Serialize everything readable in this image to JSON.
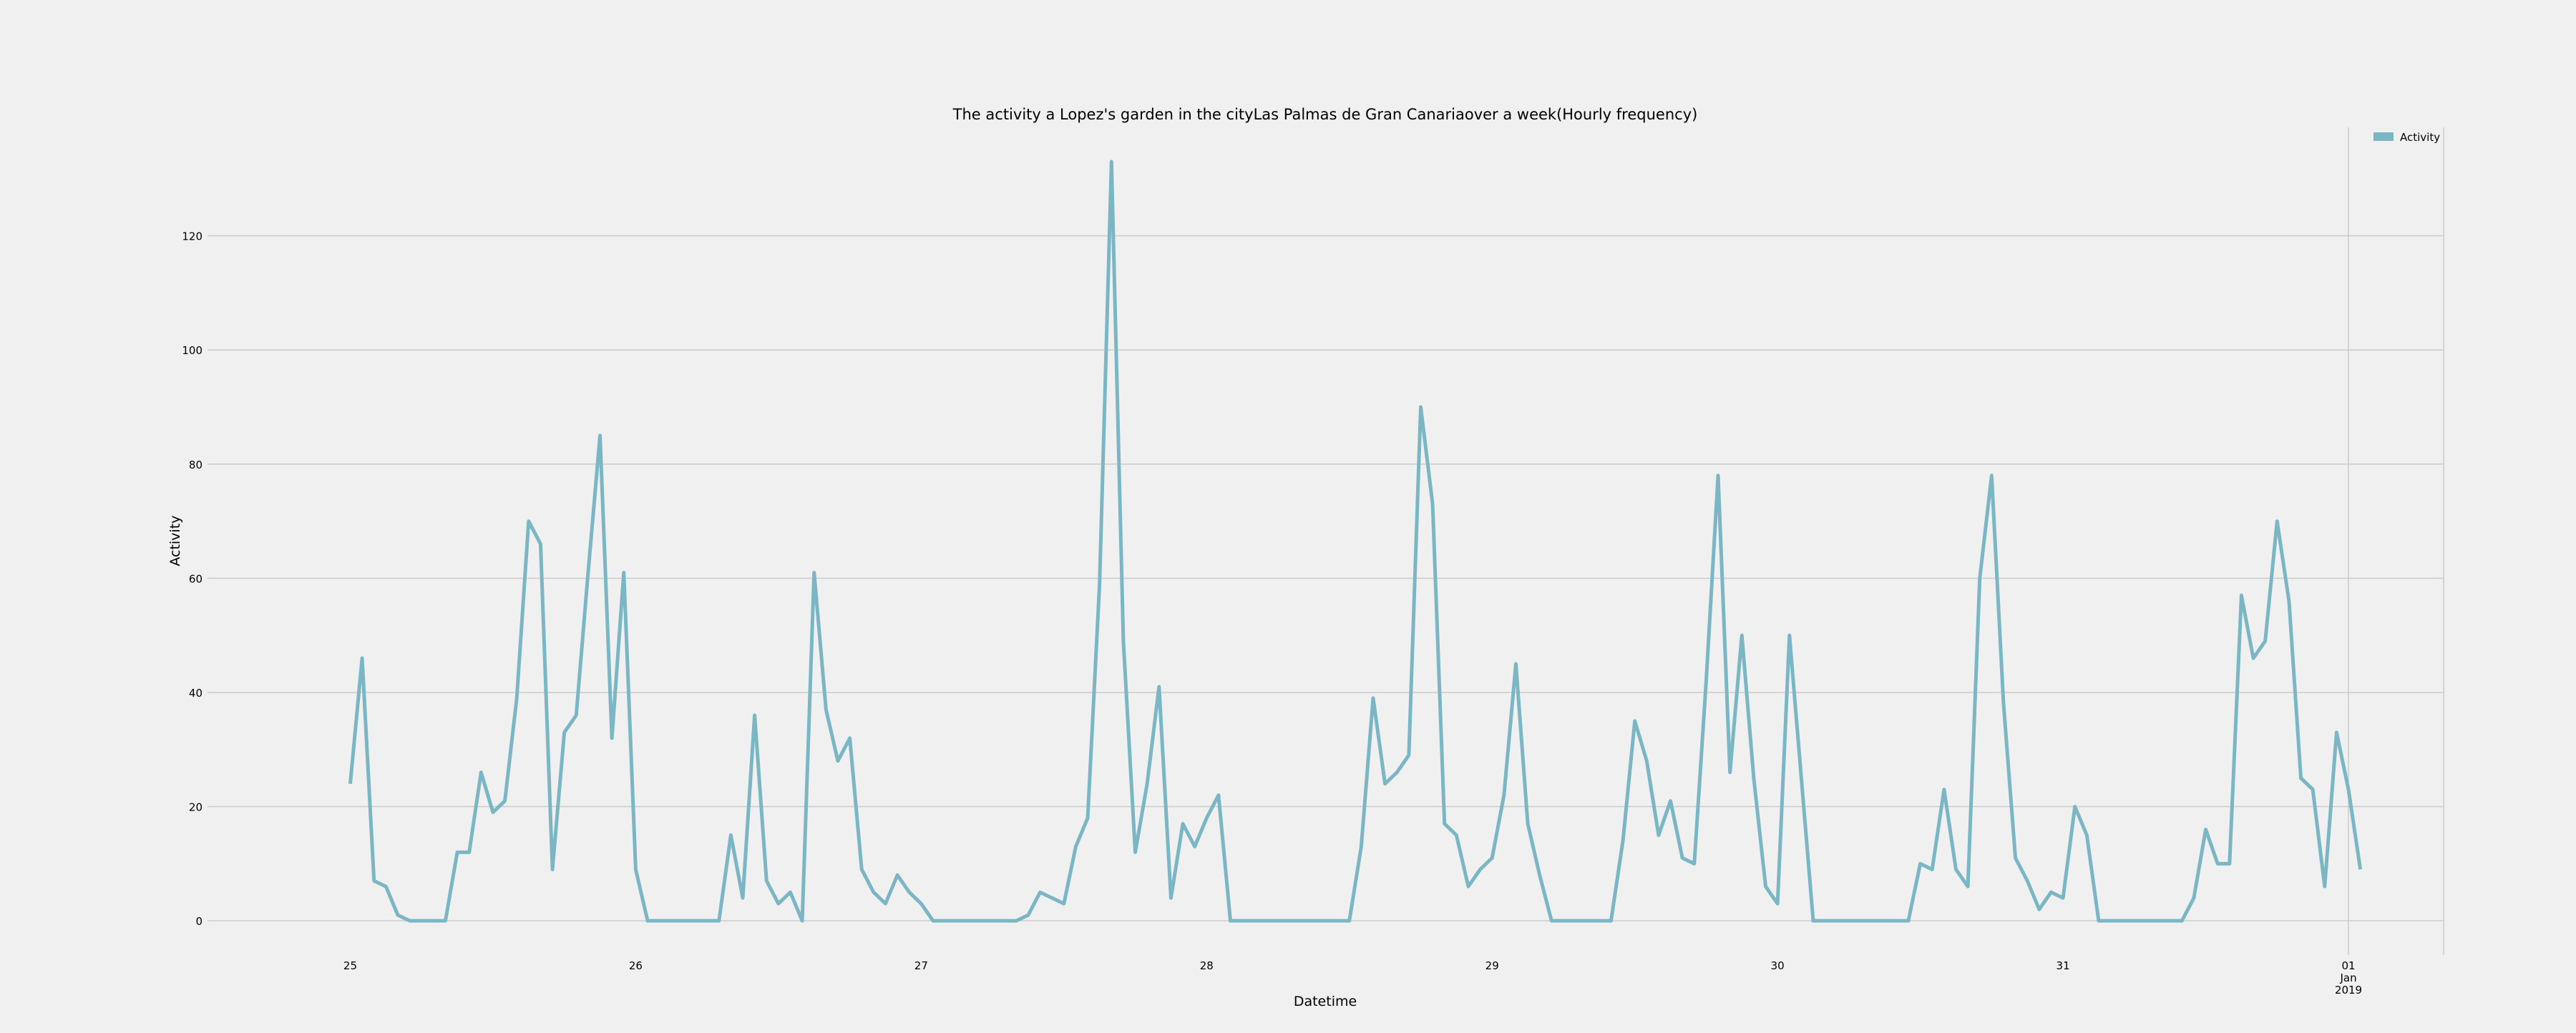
{
  "chart_data": {
    "type": "line",
    "title": "The activity a Lopez's garden in the cityLas Palmas de Gran Canariaover a week(Hourly frequency)",
    "xlabel": "Datetime",
    "ylabel": "Activity",
    "ylim": [
      -6,
      139
    ],
    "xlim": [
      "2018-12-24 12:00",
      "2019-01-01 08:00"
    ],
    "yticks": [
      0,
      20,
      40,
      60,
      80,
      100,
      120
    ],
    "xticks": [
      {
        "label": "25",
        "value": "2018-12-25 00:00"
      },
      {
        "label": "26",
        "value": "2018-12-26 00:00"
      },
      {
        "label": "27",
        "value": "2018-12-27 00:00"
      },
      {
        "label": "28",
        "value": "2018-12-28 00:00"
      },
      {
        "label": "29",
        "value": "2018-12-29 00:00"
      },
      {
        "label": "30",
        "value": "2018-12-30 00:00"
      },
      {
        "label": "31",
        "value": "2018-12-31 00:00"
      },
      {
        "label": "01\nJan\n2019",
        "value": "2019-01-01 00:00"
      }
    ],
    "grid": true,
    "legend": "top-right",
    "color": "#7ab6c4",
    "series": [
      {
        "name": "Activity",
        "x_start": "2018-12-25 00:00",
        "x_step": "1 hour",
        "values": [
          24,
          46,
          7,
          6,
          1,
          0,
          0,
          0,
          0,
          12,
          12,
          26,
          19,
          21,
          39,
          70,
          66,
          9,
          33,
          36,
          61,
          85,
          32,
          61,
          9,
          0,
          0,
          0,
          0,
          0,
          0,
          0,
          15,
          4,
          36,
          7,
          3,
          5,
          0,
          61,
          37,
          28,
          32,
          9,
          5,
          3,
          8,
          5,
          3,
          0,
          0,
          0,
          0,
          0,
          0,
          0,
          0,
          1,
          5,
          4,
          3,
          13,
          18,
          59,
          133,
          49,
          12,
          24,
          41,
          4,
          17,
          13,
          18,
          22,
          0,
          0,
          0,
          0,
          0,
          0,
          0,
          0,
          0,
          0,
          0,
          13,
          39,
          24,
          26,
          29,
          90,
          73,
          17,
          15,
          6,
          9,
          11,
          22,
          45,
          17,
          8,
          0,
          0,
          0,
          0,
          0,
          0,
          14,
          35,
          28,
          15,
          21,
          11,
          10,
          42,
          78,
          26,
          50,
          25,
          6,
          3,
          50,
          25,
          0,
          0,
          0,
          0,
          0,
          0,
          0,
          0,
          0,
          10,
          9,
          23,
          9,
          6,
          60,
          78,
          38,
          11,
          7,
          2,
          5,
          4,
          20,
          15,
          0,
          0,
          0,
          0,
          0,
          0,
          0,
          0,
          4,
          16,
          10,
          10,
          57,
          46,
          49,
          70,
          56,
          25,
          23,
          6,
          33,
          23,
          9
        ]
      }
    ]
  }
}
